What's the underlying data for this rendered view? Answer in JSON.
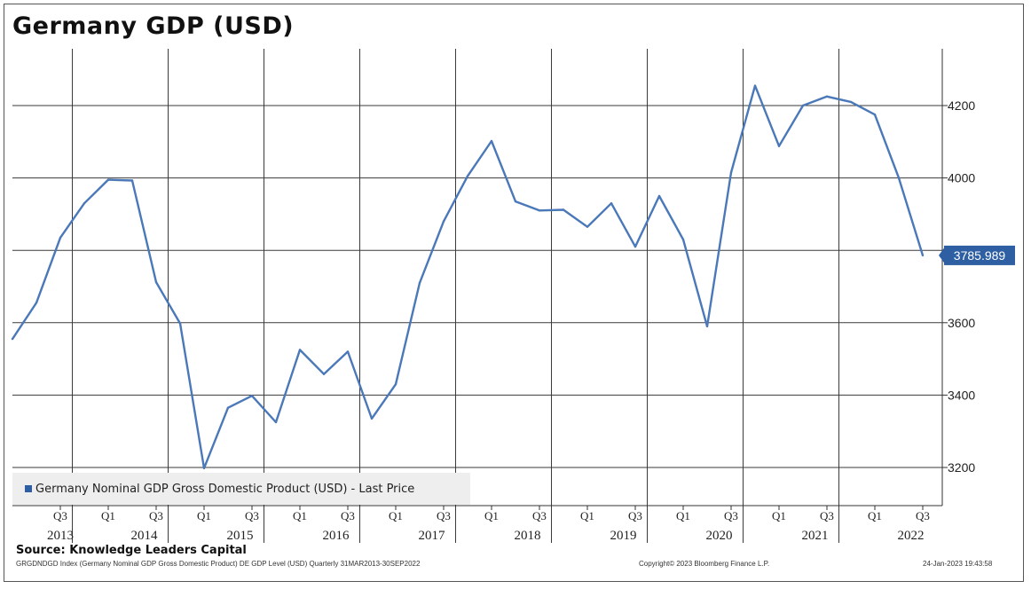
{
  "title": "Germany GDP (USD)",
  "source": "Source:  Knowledge Leaders Capital",
  "footer": {
    "left": "GRGDNDGD Index (Germany Nominal GDP Gross Domestic Product) DE GDP Level (USD)  Quarterly 31MAR2013-30SEP2022",
    "center": "Copyright© 2023 Bloomberg Finance L.P.",
    "right": "24-Jan-2023 19:43:58"
  },
  "legend": {
    "label": "Germany Nominal GDP Gross Domestic Product (USD) - Last Price"
  },
  "colors": {
    "series": "#4a78b8",
    "last_value_badge": "#2e5fa3",
    "grid": "#3a3a3a"
  },
  "chart_data": {
    "type": "line",
    "title": "Germany GDP (USD)",
    "xlabel": "",
    "ylabel": "",
    "ylim": [
      3200,
      4200
    ],
    "yticks": [
      3200,
      3400,
      3600,
      3800,
      4000,
      4200
    ],
    "y_axis_side": "right",
    "grid": true,
    "legend_position": "bottom-left",
    "last_value_label": "3785.989",
    "x_tick_labels": [
      {
        "quarter": "Q3",
        "year": "2013"
      },
      {
        "quarter": "Q1",
        "year": ""
      },
      {
        "quarter": "Q3",
        "year": "2014"
      },
      {
        "quarter": "Q1",
        "year": ""
      },
      {
        "quarter": "Q3",
        "year": "2015"
      },
      {
        "quarter": "Q1",
        "year": ""
      },
      {
        "quarter": "Q3",
        "year": "2016"
      },
      {
        "quarter": "Q1",
        "year": ""
      },
      {
        "quarter": "Q3",
        "year": "2017"
      },
      {
        "quarter": "Q1",
        "year": ""
      },
      {
        "quarter": "Q3",
        "year": "2018"
      },
      {
        "quarter": "Q1",
        "year": ""
      },
      {
        "quarter": "Q3",
        "year": "2019"
      },
      {
        "quarter": "Q1",
        "year": ""
      },
      {
        "quarter": "Q3",
        "year": "2020"
      },
      {
        "quarter": "Q1",
        "year": ""
      },
      {
        "quarter": "Q3",
        "year": "2021"
      },
      {
        "quarter": "Q1",
        "year": ""
      },
      {
        "quarter": "Q3",
        "year": "2022"
      }
    ],
    "year_labels": [
      "2013",
      "2014",
      "2015",
      "2016",
      "2017",
      "2018",
      "2019",
      "2020",
      "2021",
      "2022"
    ],
    "series": [
      {
        "name": "Germany Nominal GDP Gross Domestic Product (USD) - Last Price",
        "x": [
          "2013-Q1",
          "2013-Q2",
          "2013-Q3",
          "2013-Q4",
          "2014-Q1",
          "2014-Q2",
          "2014-Q3",
          "2014-Q4",
          "2015-Q1",
          "2015-Q2",
          "2015-Q3",
          "2015-Q4",
          "2016-Q1",
          "2016-Q2",
          "2016-Q3",
          "2016-Q4",
          "2017-Q1",
          "2017-Q2",
          "2017-Q3",
          "2017-Q4",
          "2018-Q1",
          "2018-Q2",
          "2018-Q3",
          "2018-Q4",
          "2019-Q1",
          "2019-Q2",
          "2019-Q3",
          "2019-Q4",
          "2020-Q1",
          "2020-Q2",
          "2020-Q3",
          "2020-Q4",
          "2021-Q1",
          "2021-Q2",
          "2021-Q3",
          "2021-Q4",
          "2022-Q1",
          "2022-Q2",
          "2022-Q3"
        ],
        "values": [
          3555,
          3655,
          3835,
          3930,
          3995,
          3993,
          3712,
          3598,
          3198,
          3365,
          3398,
          3325,
          3525,
          3458,
          3520,
          3335,
          3430,
          3710,
          3880,
          4005,
          4102,
          3935,
          3910,
          3912,
          3865,
          3930,
          3810,
          3950,
          3830,
          3590,
          4015,
          4255,
          4088,
          4200,
          4225,
          4210,
          4175,
          4000,
          3786
        ]
      }
    ]
  }
}
